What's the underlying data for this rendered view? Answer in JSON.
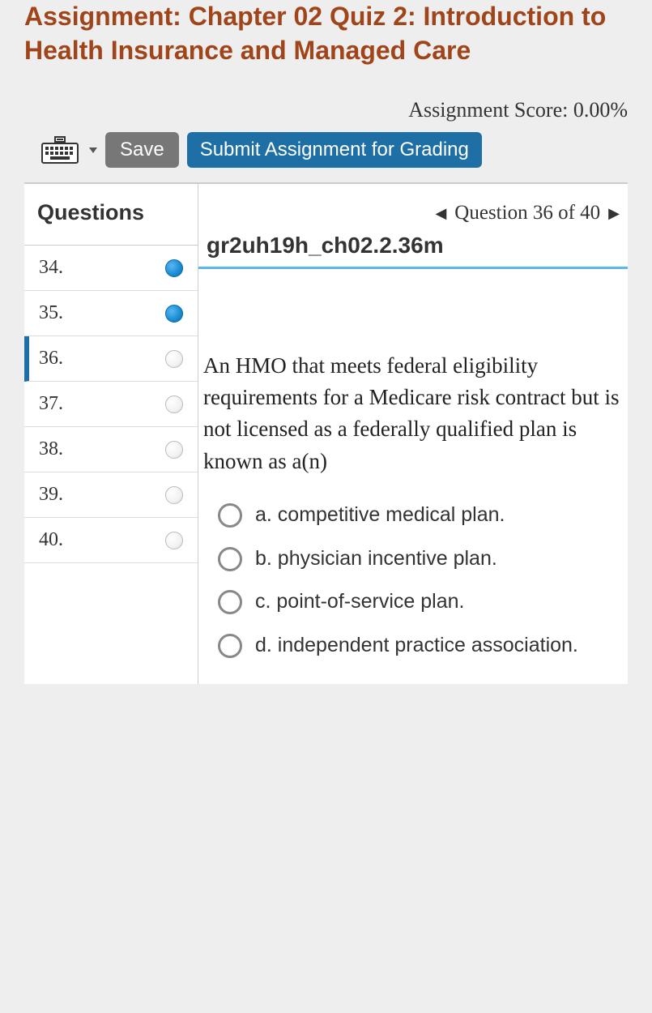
{
  "header": {
    "title": "Assignment: Chapter 02 Quiz 2: Introduction to Health Insurance and Managed Care",
    "score_label": "Assignment Score: 0.00%"
  },
  "toolbar": {
    "save_label": "Save",
    "submit_label": "Submit Assignment for Grading"
  },
  "sidebar": {
    "header": "Questions",
    "items": [
      {
        "num": "34.",
        "status": "filled",
        "active": false
      },
      {
        "num": "35.",
        "status": "filled",
        "active": false
      },
      {
        "num": "36.",
        "status": "empty",
        "active": true
      },
      {
        "num": "37.",
        "status": "empty",
        "active": false
      },
      {
        "num": "38.",
        "status": "empty",
        "active": false
      },
      {
        "num": "39.",
        "status": "empty",
        "active": false
      },
      {
        "num": "40.",
        "status": "empty",
        "active": false
      }
    ]
  },
  "question": {
    "nav_text": "Question 36 of 40",
    "id": "gr2uh19h_ch02.2.36m",
    "text": "An HMO that meets federal eligibility requirements for a Medicare risk contract but is not licensed as a federally qualified plan is known as a(n)",
    "options": [
      {
        "label": "a. competitive medical plan."
      },
      {
        "label": "b. physician incentive plan."
      },
      {
        "label": "c. point-of-service plan."
      },
      {
        "label": "d. independent practice association."
      }
    ]
  },
  "colors": {
    "title": "#a0441a",
    "primary": "#1d6fa5",
    "accent": "#5bb7f0",
    "bg": "#eeeeee"
  }
}
